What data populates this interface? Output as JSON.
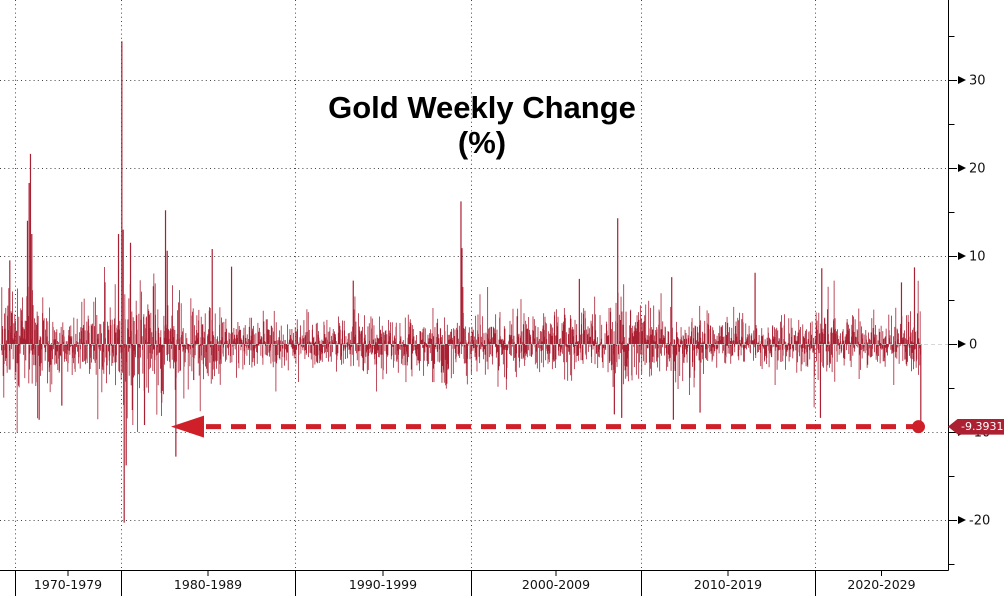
{
  "title": {
    "line1": "Gold Weekly Change",
    "line2": "(%)"
  },
  "y_axis": {
    "side": "right",
    "ticks": [
      30,
      20,
      10,
      0,
      -10,
      -20
    ],
    "minor_ticks": [
      35,
      25,
      15,
      5,
      -5,
      -15,
      -25
    ],
    "last_value_label": "-9.3931"
  },
  "x_axis": {
    "sections": [
      "1970-1979",
      "1980-1989",
      "1990-1999",
      "2000-2009",
      "2010-2019",
      "2020-2029"
    ]
  },
  "annotation": {
    "type": "dashed-arrow",
    "label": "-9.3931",
    "value": -9.3931,
    "points_back_to_year": 1983,
    "description": "dashed red arrow from latest weekly drop back to the comparable 1983 drop"
  },
  "colors": {
    "background": "#ffffff",
    "bar": "#aa2033",
    "arrow": "#cf1f28",
    "tag_bg": "#ad2032",
    "tag_text": "#ffffff",
    "grid": "#444444",
    "zero_line": "#cccccc",
    "axis": "#000000",
    "tick_label": "#111111"
  },
  "chart_data": {
    "type": "bar",
    "title": "Gold Weekly Change (%)",
    "x_unit": "week",
    "x_start_year": 1973.13,
    "weeks_per_year": 52.18,
    "ylim": [
      -26,
      39
    ],
    "y_gridlines": [
      30,
      20,
      10,
      0,
      -10,
      -20
    ],
    "grid": true,
    "seed": 20251024,
    "era_volatility": [
      {
        "from": 1973.1,
        "to": 1976.0,
        "weekly_sigma": 2.8
      },
      {
        "from": 1976.0,
        "to": 1978.5,
        "weekly_sigma": 1.8
      },
      {
        "from": 1978.5,
        "to": 1980.0,
        "weekly_sigma": 2.7
      },
      {
        "from": 1980.0,
        "to": 1982.4,
        "weekly_sigma": 3.4
      },
      {
        "from": 1982.4,
        "to": 1986.0,
        "weekly_sigma": 2.3
      },
      {
        "from": 1986.0,
        "to": 1997.0,
        "weekly_sigma": 1.5
      },
      {
        "from": 1997.0,
        "to": 2002.0,
        "weekly_sigma": 1.8
      },
      {
        "from": 2002.0,
        "to": 2008.0,
        "weekly_sigma": 1.7
      },
      {
        "from": 2008.0,
        "to": 2010.0,
        "weekly_sigma": 2.4
      },
      {
        "from": 2010.0,
        "to": 2014.0,
        "weekly_sigma": 2.0
      },
      {
        "from": 2014.0,
        "to": 2019.8,
        "weekly_sigma": 1.4
      },
      {
        "from": 2019.8,
        "to": 2021.0,
        "weekly_sigma": 2.0
      },
      {
        "from": 2021.0,
        "to": 2024.3,
        "weekly_sigma": 1.5
      },
      {
        "from": 2024.3,
        "to": 2026.0,
        "weekly_sigma": 2.0
      }
    ],
    "notable_points": [
      {
        "year": 1973.6,
        "value": 9.5
      },
      {
        "year": 1974.62,
        "value": 14.0
      },
      {
        "year": 1974.72,
        "value": 18.3
      },
      {
        "year": 1974.8,
        "value": 21.6
      },
      {
        "year": 1974.88,
        "value": 12.5
      },
      {
        "year": 1975.3,
        "value": -8.6
      },
      {
        "year": 1976.6,
        "value": -7.0
      },
      {
        "year": 1979.85,
        "value": 12.5
      },
      {
        "year": 1980.04,
        "value": 34.4
      },
      {
        "year": 1980.12,
        "value": 13.0
      },
      {
        "year": 1980.19,
        "value": -20.3
      },
      {
        "year": 1980.3,
        "value": -13.8
      },
      {
        "year": 1980.55,
        "value": 11.5
      },
      {
        "year": 1981.35,
        "value": -9.2
      },
      {
        "year": 1982.55,
        "value": 15.2
      },
      {
        "year": 1982.65,
        "value": 10.6
      },
      {
        "year": 1983.15,
        "value": -12.8
      },
      {
        "year": 1985.25,
        "value": 10.8
      },
      {
        "year": 1986.35,
        "value": 8.8
      },
      {
        "year": 1993.35,
        "value": 7.2
      },
      {
        "year": 1999.54,
        "value": 16.2
      },
      {
        "year": 1999.6,
        "value": 10.9
      },
      {
        "year": 2006.35,
        "value": 7.4
      },
      {
        "year": 2008.35,
        "value": -8.0
      },
      {
        "year": 2008.55,
        "value": 14.3
      },
      {
        "year": 2008.78,
        "value": -8.4
      },
      {
        "year": 2011.65,
        "value": 7.6
      },
      {
        "year": 2011.75,
        "value": -8.6
      },
      {
        "year": 2013.28,
        "value": -7.8
      },
      {
        "year": 2016.45,
        "value": 8.1
      },
      {
        "year": 2020.2,
        "value": -8.4
      },
      {
        "year": 2020.28,
        "value": 8.6
      },
      {
        "year": 2024.85,
        "value": 7.0
      },
      {
        "year": 2025.6,
        "value": 8.7
      }
    ],
    "last_point": {
      "year": 2025.98,
      "value": -9.3931
    }
  }
}
